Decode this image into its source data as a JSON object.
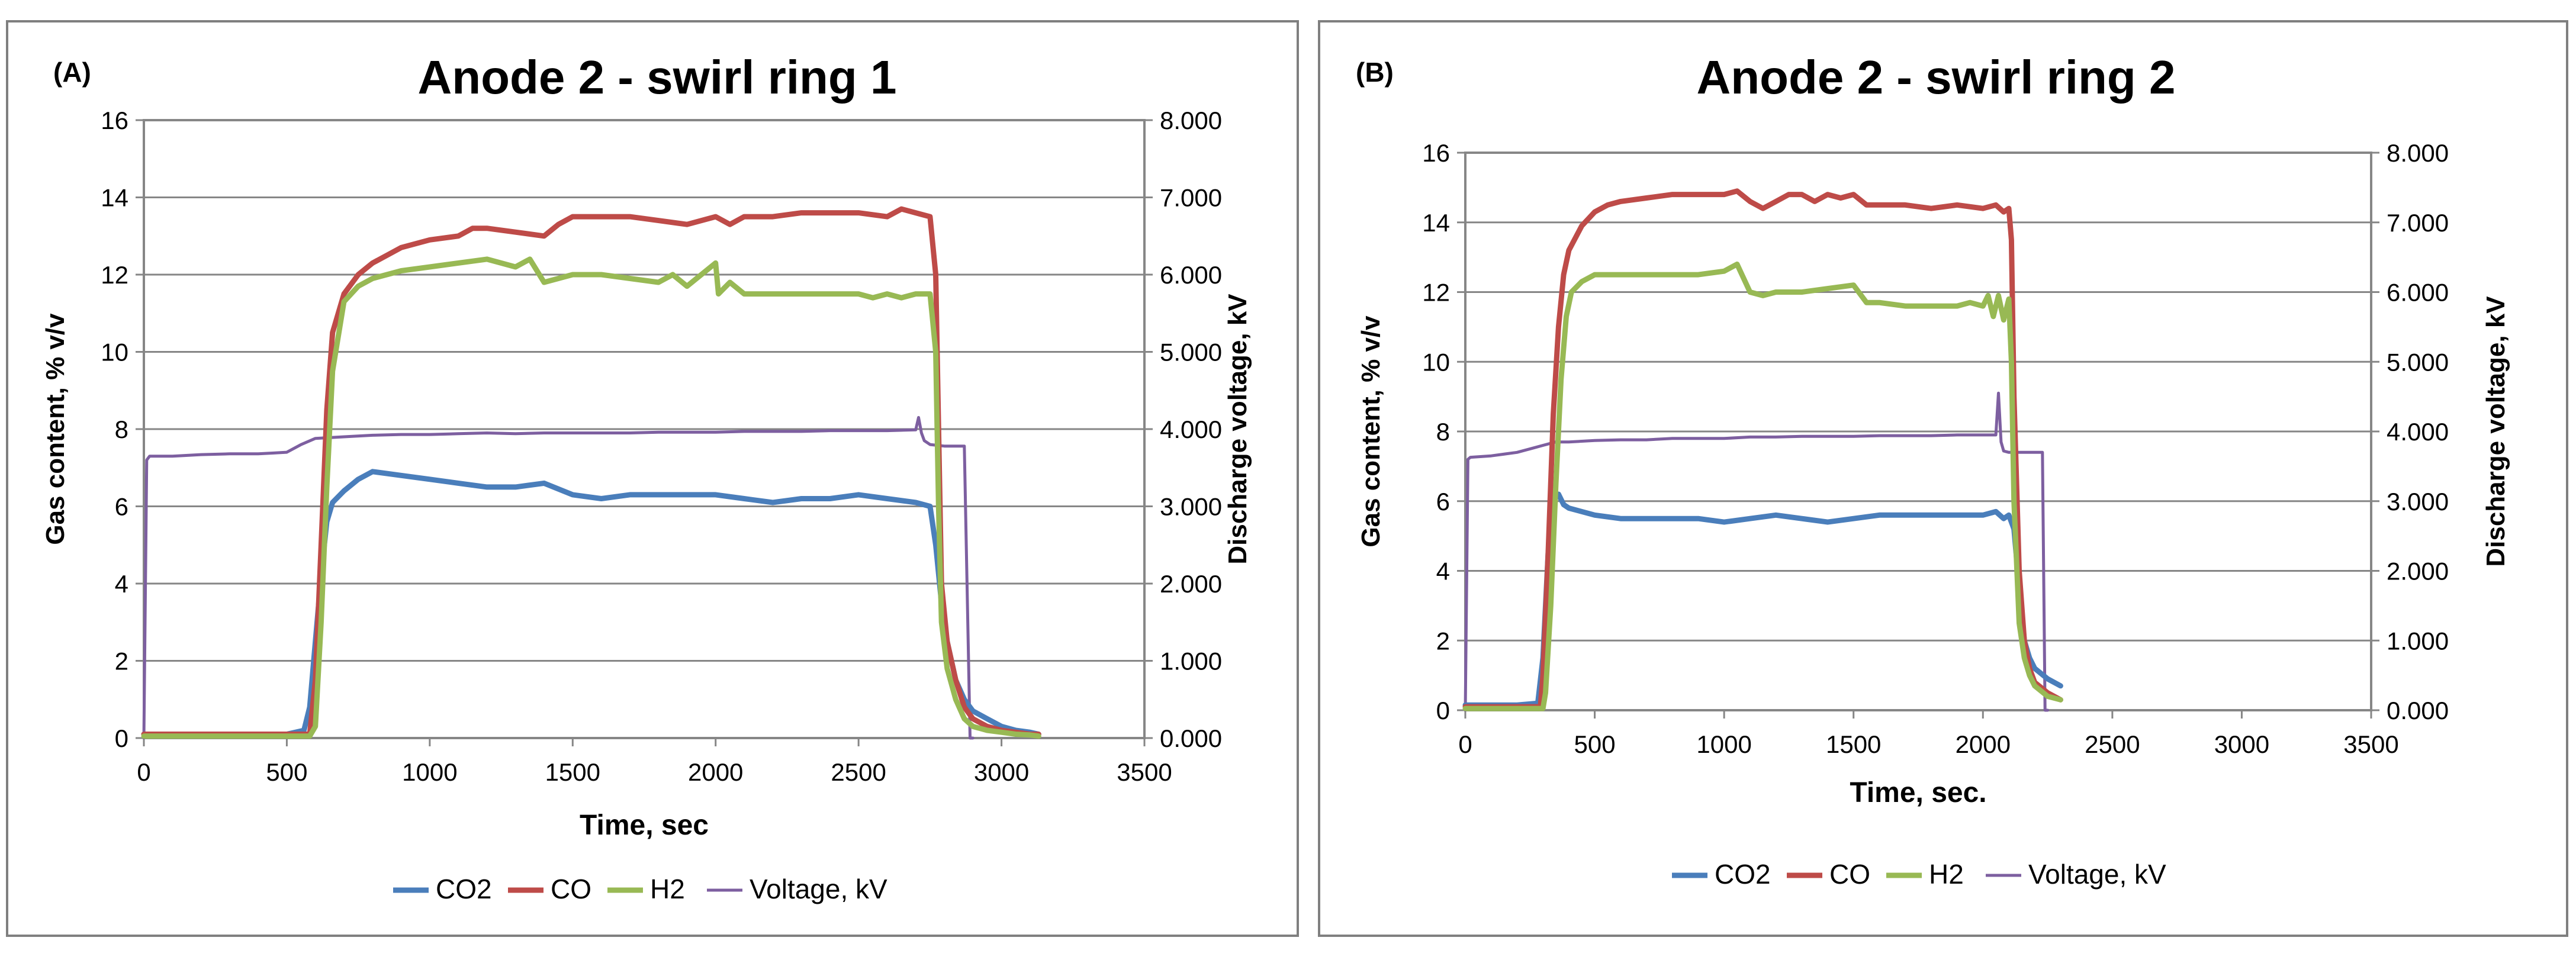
{
  "chart_data": [
    {
      "type": "line",
      "panel_label": "(A)",
      "title": "Anode 2 -  swirl ring 1",
      "xlabel": "Time, sec",
      "ylabel": "Gas content, % v/v",
      "y2label": "Discharge voltage, kV",
      "xlim": [
        0,
        3500
      ],
      "ylim": [
        0,
        16
      ],
      "y2lim": [
        0,
        8
      ],
      "x_ticks": [
        "0",
        "500",
        "1000",
        "1500",
        "2000",
        "2500",
        "3000",
        "3500"
      ],
      "y_ticks": [
        "0",
        "2",
        "4",
        "6",
        "8",
        "10",
        "12",
        "14",
        "16"
      ],
      "y2_ticks": [
        "0.000",
        "1.000",
        "2.000",
        "3.000",
        "4.000",
        "5.000",
        "6.000",
        "7.000",
        "8.000"
      ],
      "grid": "horizontal",
      "legend_position": "bottom",
      "series": [
        {
          "name": "CO2",
          "color": "#4a7ebb",
          "axis": "left",
          "x": [
            0,
            100,
            200,
            300,
            400,
            500,
            560,
            580,
            600,
            620,
            640,
            660,
            700,
            750,
            800,
            900,
            1000,
            1100,
            1200,
            1300,
            1400,
            1500,
            1600,
            1700,
            1800,
            1900,
            2000,
            2100,
            2200,
            2300,
            2400,
            2500,
            2600,
            2700,
            2750,
            2770,
            2790,
            2810,
            2840,
            2870,
            2900,
            2950,
            3000,
            3050,
            3100,
            3130
          ],
          "y": [
            0.1,
            0.1,
            0.1,
            0.1,
            0.1,
            0.1,
            0.2,
            0.8,
            2.5,
            4.2,
            5.6,
            6.1,
            6.4,
            6.7,
            6.9,
            6.8,
            6.7,
            6.6,
            6.5,
            6.5,
            6.6,
            6.3,
            6.2,
            6.3,
            6.3,
            6.3,
            6.3,
            6.2,
            6.1,
            6.2,
            6.2,
            6.3,
            6.2,
            6.1,
            6.0,
            5.0,
            3.5,
            2.5,
            1.5,
            1.0,
            0.7,
            0.5,
            0.3,
            0.2,
            0.15,
            0.1
          ]
        },
        {
          "name": "CO",
          "color": "#be4b48",
          "axis": "left",
          "x": [
            0,
            100,
            200,
            300,
            400,
            500,
            580,
            600,
            620,
            640,
            660,
            700,
            750,
            800,
            850,
            900,
            1000,
            1100,
            1150,
            1200,
            1300,
            1400,
            1450,
            1500,
            1600,
            1700,
            1800,
            1900,
            2000,
            2050,
            2100,
            2200,
            2300,
            2400,
            2500,
            2600,
            2650,
            2700,
            2750,
            2770,
            2780,
            2790,
            2810,
            2840,
            2870,
            2900,
            2950,
            3000,
            3050,
            3100,
            3130
          ],
          "y": [
            0.1,
            0.1,
            0.1,
            0.1,
            0.1,
            0.1,
            0.1,
            1.5,
            5.0,
            8.5,
            10.5,
            11.5,
            12.0,
            12.3,
            12.5,
            12.7,
            12.9,
            13.0,
            13.2,
            13.2,
            13.1,
            13.0,
            13.3,
            13.5,
            13.5,
            13.5,
            13.4,
            13.3,
            13.5,
            13.3,
            13.5,
            13.5,
            13.6,
            13.6,
            13.6,
            13.5,
            13.7,
            13.6,
            13.5,
            12.0,
            8.0,
            4.0,
            2.5,
            1.5,
            0.8,
            0.5,
            0.3,
            0.2,
            0.15,
            0.1,
            0.1
          ]
        },
        {
          "name": "H2",
          "color": "#98b954",
          "axis": "left",
          "x": [
            0,
            100,
            200,
            300,
            400,
            500,
            580,
            600,
            620,
            640,
            660,
            700,
            750,
            800,
            900,
            1000,
            1100,
            1200,
            1300,
            1350,
            1400,
            1500,
            1600,
            1700,
            1800,
            1850,
            1900,
            2000,
            2010,
            2050,
            2100,
            2200,
            2300,
            2400,
            2500,
            2550,
            2600,
            2650,
            2700,
            2750,
            2770,
            2780,
            2790,
            2810,
            2840,
            2870,
            2900,
            2950,
            3000,
            3050,
            3100,
            3130
          ],
          "y": [
            0.05,
            0.05,
            0.05,
            0.05,
            0.05,
            0.05,
            0.05,
            0.3,
            3.0,
            6.5,
            9.5,
            11.3,
            11.7,
            11.9,
            12.1,
            12.2,
            12.3,
            12.4,
            12.2,
            12.4,
            11.8,
            12.0,
            12.0,
            11.9,
            11.8,
            12.0,
            11.7,
            12.3,
            11.5,
            11.8,
            11.5,
            11.5,
            11.5,
            11.5,
            11.5,
            11.4,
            11.5,
            11.4,
            11.5,
            11.5,
            10.0,
            6.0,
            3.0,
            1.8,
            1.0,
            0.5,
            0.3,
            0.2,
            0.15,
            0.1,
            0.08,
            0.05
          ]
        },
        {
          "name": "Voltage, kV",
          "color": "#7d5fa0",
          "axis": "right",
          "x": [
            0,
            10,
            20,
            100,
            200,
            300,
            400,
            450,
            500,
            550,
            600,
            700,
            800,
            900,
            1000,
            1100,
            1200,
            1300,
            1400,
            1500,
            1600,
            1700,
            1800,
            1900,
            2000,
            2100,
            2200,
            2300,
            2400,
            2500,
            2600,
            2700,
            2710,
            2720,
            2730,
            2750,
            2800,
            2860,
            2870,
            2890,
            2900
          ],
          "y": [
            0,
            3.6,
            3.65,
            3.65,
            3.67,
            3.68,
            3.68,
            3.69,
            3.7,
            3.8,
            3.88,
            3.9,
            3.92,
            3.93,
            3.93,
            3.94,
            3.95,
            3.94,
            3.95,
            3.95,
            3.95,
            3.95,
            3.96,
            3.96,
            3.96,
            3.97,
            3.97,
            3.97,
            3.98,
            3.98,
            3.98,
            3.99,
            4.15,
            3.95,
            3.85,
            3.8,
            3.78,
            3.78,
            3.78,
            0.0,
            0.0
          ]
        }
      ]
    },
    {
      "type": "line",
      "panel_label": "(B)",
      "title": "Anode 2 - swirl ring 2",
      "xlabel": "Time, sec.",
      "ylabel": "Gas content, % v/v",
      "y2label": "Discharge voltage, kV",
      "xlim": [
        0,
        3500
      ],
      "ylim": [
        0,
        16
      ],
      "y2lim": [
        0,
        8
      ],
      "x_ticks": [
        "0",
        "500",
        "1000",
        "1500",
        "2000",
        "2500",
        "3000",
        "3500"
      ],
      "y_ticks": [
        "0",
        "2",
        "4",
        "6",
        "8",
        "10",
        "12",
        "14",
        "16"
      ],
      "y2_ticks": [
        "0.000",
        "1.000",
        "2.000",
        "3.000",
        "4.000",
        "5.000",
        "6.000",
        "7.000",
        "8.000"
      ],
      "grid": "horizontal",
      "legend_position": "bottom",
      "series": [
        {
          "name": "CO2",
          "color": "#4a7ebb",
          "axis": "left",
          "x": [
            0,
            100,
            200,
            280,
            300,
            320,
            340,
            360,
            380,
            400,
            500,
            600,
            700,
            800,
            900,
            1000,
            1100,
            1200,
            1300,
            1400,
            1500,
            1600,
            1700,
            1800,
            1900,
            2000,
            2050,
            2080,
            2100,
            2120,
            2140,
            2160,
            2180,
            2200,
            2250,
            2300
          ],
          "y": [
            0.15,
            0.15,
            0.15,
            0.2,
            1.5,
            4.5,
            6.0,
            6.2,
            5.9,
            5.8,
            5.6,
            5.5,
            5.5,
            5.5,
            5.5,
            5.4,
            5.5,
            5.6,
            5.5,
            5.4,
            5.5,
            5.6,
            5.6,
            5.6,
            5.6,
            5.6,
            5.7,
            5.5,
            5.6,
            5.2,
            3.5,
            2.0,
            1.5,
            1.2,
            0.9,
            0.7
          ]
        },
        {
          "name": "CO",
          "color": "#be4b48",
          "axis": "left",
          "x": [
            0,
            100,
            200,
            290,
            300,
            320,
            340,
            360,
            380,
            400,
            450,
            500,
            550,
            600,
            700,
            800,
            900,
            1000,
            1050,
            1100,
            1150,
            1200,
            1250,
            1300,
            1350,
            1400,
            1450,
            1500,
            1550,
            1600,
            1700,
            1800,
            1900,
            2000,
            2050,
            2080,
            2100,
            2110,
            2120,
            2140,
            2160,
            2180,
            2200,
            2250,
            2300
          ],
          "y": [
            0.1,
            0.1,
            0.1,
            0.1,
            1.0,
            4.5,
            8.5,
            11.0,
            12.5,
            13.2,
            13.9,
            14.3,
            14.5,
            14.6,
            14.7,
            14.8,
            14.8,
            14.8,
            14.9,
            14.6,
            14.4,
            14.6,
            14.8,
            14.8,
            14.6,
            14.8,
            14.7,
            14.8,
            14.5,
            14.5,
            14.5,
            14.4,
            14.5,
            14.4,
            14.5,
            14.3,
            14.4,
            13.5,
            9.0,
            4.0,
            2.0,
            1.2,
            0.8,
            0.5,
            0.3
          ]
        },
        {
          "name": "H2",
          "color": "#98b954",
          "axis": "left",
          "x": [
            0,
            100,
            200,
            300,
            310,
            330,
            350,
            370,
            390,
            410,
            450,
            500,
            600,
            700,
            800,
            900,
            1000,
            1050,
            1100,
            1150,
            1200,
            1300,
            1400,
            1500,
            1550,
            1600,
            1700,
            1800,
            1900,
            1950,
            2000,
            2020,
            2040,
            2060,
            2080,
            2100,
            2110,
            2120,
            2140,
            2160,
            2180,
            2200,
            2250,
            2300
          ],
          "y": [
            0.05,
            0.05,
            0.05,
            0.05,
            0.5,
            3.0,
            6.5,
            9.5,
            11.3,
            12.0,
            12.3,
            12.5,
            12.5,
            12.5,
            12.5,
            12.5,
            12.6,
            12.8,
            12.0,
            11.9,
            12.0,
            12.0,
            12.1,
            12.2,
            11.7,
            11.7,
            11.6,
            11.6,
            11.6,
            11.7,
            11.6,
            11.9,
            11.3,
            11.9,
            11.2,
            11.8,
            10.0,
            6.0,
            2.5,
            1.5,
            1.0,
            0.7,
            0.4,
            0.3
          ]
        },
        {
          "name": "Voltage, kV",
          "color": "#7d5fa0",
          "axis": "right",
          "x": [
            0,
            10,
            20,
            100,
            200,
            250,
            300,
            350,
            400,
            500,
            600,
            700,
            800,
            900,
            1000,
            1100,
            1200,
            1300,
            1400,
            1500,
            1600,
            1700,
            1800,
            1900,
            2000,
            2050,
            2060,
            2070,
            2080,
            2100,
            2150,
            2200,
            2230,
            2240,
            2250
          ],
          "y": [
            0,
            3.6,
            3.63,
            3.65,
            3.7,
            3.75,
            3.8,
            3.85,
            3.85,
            3.87,
            3.88,
            3.88,
            3.9,
            3.9,
            3.9,
            3.92,
            3.92,
            3.93,
            3.93,
            3.93,
            3.94,
            3.94,
            3.94,
            3.95,
            3.95,
            3.95,
            4.55,
            3.85,
            3.72,
            3.7,
            3.7,
            3.7,
            3.7,
            0.0,
            0.0
          ]
        }
      ]
    }
  ]
}
